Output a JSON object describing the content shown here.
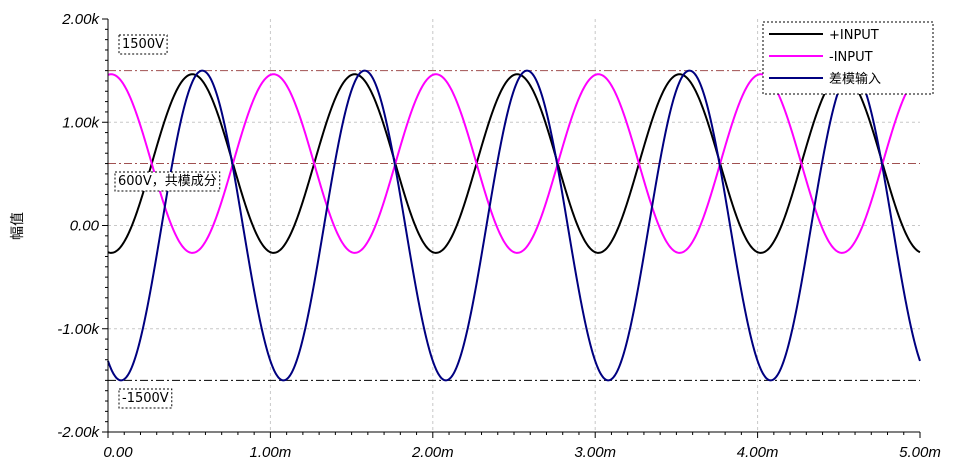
{
  "chart_data": {
    "type": "line",
    "ylabel": "幅值",
    "xlim": [
      0,
      0.005
    ],
    "ylim": [
      -2000,
      2000
    ],
    "xticks": [
      {
        "value": 0,
        "label": "0.00"
      },
      {
        "value": 0.001,
        "label": "1.00m"
      },
      {
        "value": 0.002,
        "label": "2.00m"
      },
      {
        "value": 0.003,
        "label": "3.00m"
      },
      {
        "value": 0.004,
        "label": "4.00m"
      },
      {
        "value": 0.005,
        "label": "5.00m"
      }
    ],
    "yticks": [
      {
        "value": 2000,
        "label": "2.00k"
      },
      {
        "value": 1000,
        "label": "1.00k"
      },
      {
        "value": 0,
        "label": "0.00"
      },
      {
        "value": -1000,
        "label": "-1.00k"
      },
      {
        "value": -2000,
        "label": "-2.00k"
      }
    ],
    "grid": true,
    "legend_position": "top-right",
    "series": [
      {
        "name": "+INPUT",
        "color": "#000000",
        "offset": 600,
        "amplitude": 865,
        "frequency_hz": 1000,
        "phase_deg": -97
      },
      {
        "name": "-INPUT",
        "color": "#ff00ff",
        "offset": 600,
        "amplitude": 865,
        "frequency_hz": 1000,
        "phase_deg": 83
      },
      {
        "name": "差模输入",
        "color": "#000080",
        "offset": 0,
        "amplitude": 1500,
        "frequency_hz": 1000,
        "phase_deg": -119
      }
    ],
    "reference_lines": [
      {
        "value": 1500,
        "label": "1500V",
        "color": "#a05050",
        "style": "dashdot"
      },
      {
        "value": 600,
        "label": "600V，共模成分",
        "color": "#a05050",
        "style": "dashdot"
      },
      {
        "value": -1500,
        "label": "-1500V",
        "color": "#000000",
        "style": "dashdot"
      }
    ]
  }
}
